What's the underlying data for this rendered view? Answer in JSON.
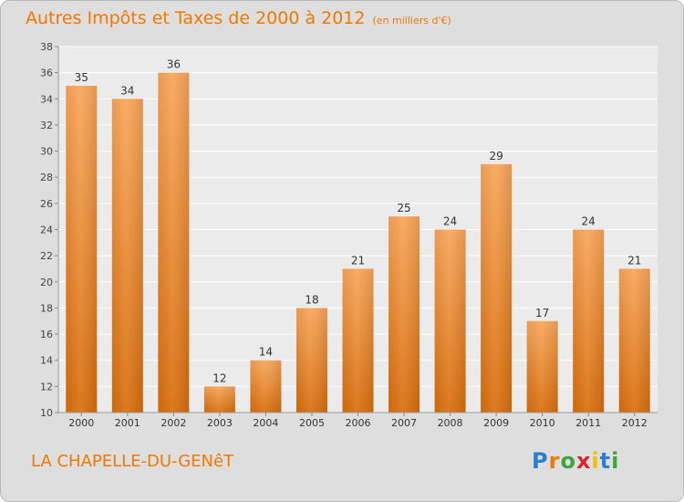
{
  "title": "Autres Impôts et Taxes de 2000 à 2012",
  "subtitle": "(en milliers d'€)",
  "commune": "LA CHAPELLE-DU-GENêT",
  "logo": {
    "letters": [
      "P",
      "r",
      "o",
      "x",
      "i",
      "t",
      "i"
    ],
    "colors": [
      "#2a7fd4",
      "#f07800",
      "#3aa63a",
      "#d9262e",
      "#f2c200",
      "#2a7fd4",
      "#3aa63a"
    ]
  },
  "colors": {
    "title": "#f07800",
    "bar_light": "#f9a65a",
    "bar_dark": "#d96e0c",
    "plot_bg": "#ebebeb",
    "grid": "#ffffff"
  },
  "chart_data": {
    "type": "bar",
    "categories": [
      "2000",
      "2001",
      "2002",
      "2003",
      "2004",
      "2005",
      "2006",
      "2007",
      "2008",
      "2009",
      "2010",
      "2011",
      "2012"
    ],
    "values": [
      35,
      34,
      36,
      12,
      14,
      18,
      21,
      25,
      24,
      29,
      17,
      24,
      21
    ],
    "ylim": [
      10,
      38
    ],
    "yticks": [
      10,
      12,
      14,
      16,
      18,
      20,
      22,
      24,
      26,
      28,
      30,
      32,
      34,
      36,
      38
    ],
    "grid": true,
    "data_labels": true
  }
}
